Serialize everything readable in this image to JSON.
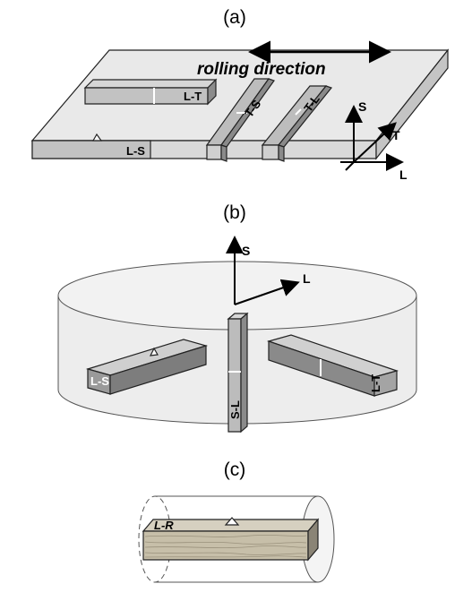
{
  "panels": {
    "a": {
      "label": "(a)",
      "rolling_direction": "rolling direction",
      "axes": {
        "s": "S",
        "t": "T",
        "l": "L"
      },
      "specimens": {
        "lt": "L-T",
        "ts": "T-S",
        "tl": "T-L",
        "ls": "L-S"
      }
    },
    "b": {
      "label": "(b)",
      "axes": {
        "s": "S",
        "l": "L"
      },
      "specimens": {
        "ls": "L-S",
        "sl": "S-L",
        "lt": "L-T"
      }
    },
    "c": {
      "label": "(c)",
      "specimens": {
        "lr": "L-R"
      }
    }
  },
  "colors": {
    "plate": "#e6e6e6",
    "specimen_light": "#c8c8c8",
    "specimen_mid": "#a4a4a4",
    "specimen_dark": "#7a7a7a",
    "disk": "#eeeeee",
    "wood": "#c9c1ad"
  }
}
